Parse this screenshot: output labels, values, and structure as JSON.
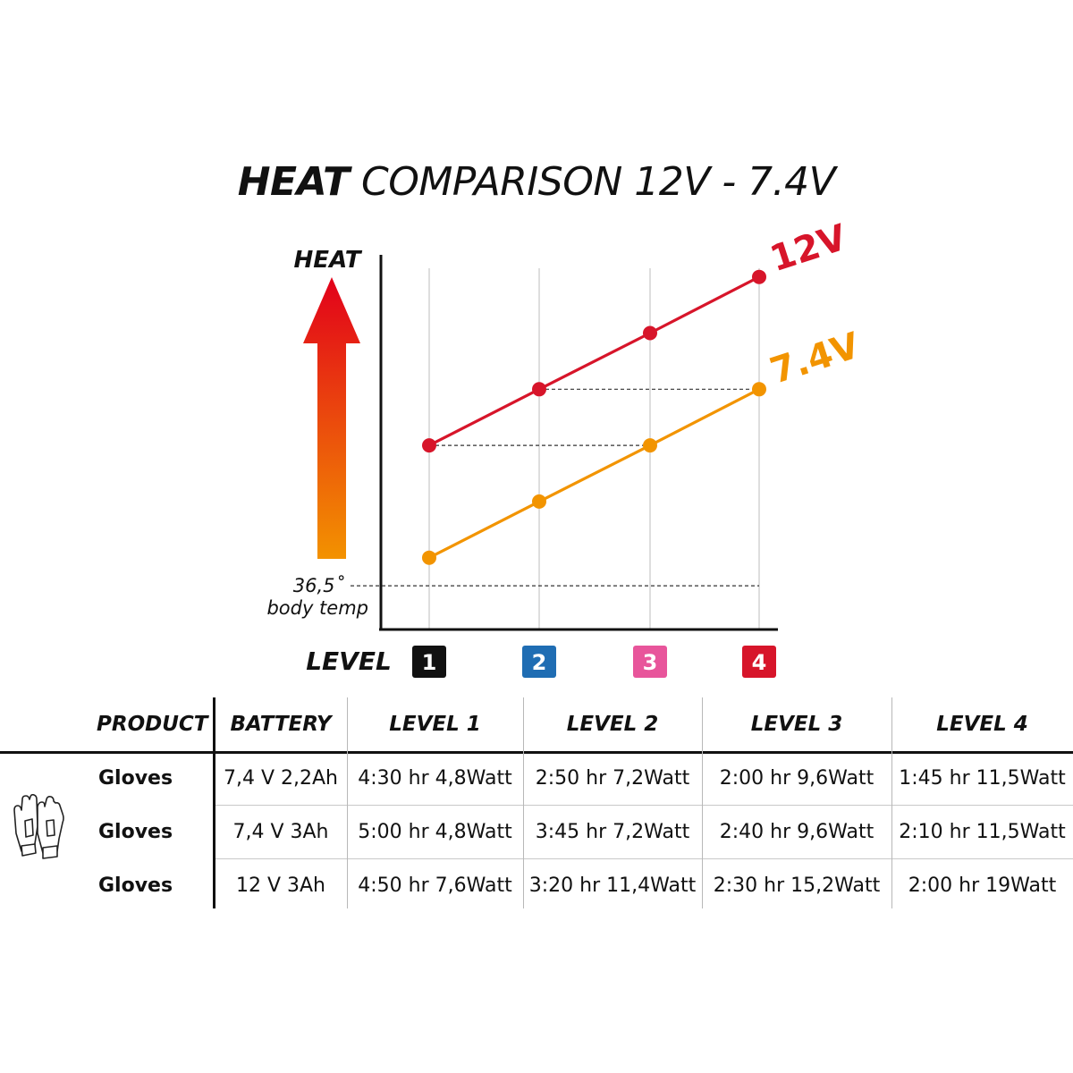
{
  "title": {
    "bold": "HEAT",
    "rest": " COMPARISON 12V - 7.4V"
  },
  "chart_data": {
    "type": "line",
    "categories": [
      "1",
      "2",
      "3",
      "4"
    ],
    "series": [
      {
        "name": "12V",
        "values": [
          3,
          4,
          5,
          6
        ],
        "color": "#d7152a"
      },
      {
        "name": "7.4V",
        "values": [
          1,
          2,
          3,
          4
        ],
        "color": "#f29400"
      }
    ],
    "ylabel": "HEAT",
    "xlabel": "LEVEL",
    "baseline_label_1": "36,5˚",
    "baseline_label_2": "body temp",
    "baseline_value": 0.5,
    "ylim": [
      0,
      7
    ],
    "level_colors": [
      "#111111",
      "#1f6db3",
      "#e8559b",
      "#d7152a"
    ],
    "arrow_colors": {
      "top": "#e2001a",
      "bottom": "#f39200"
    }
  },
  "table": {
    "headers": [
      "PRODUCT",
      "BATTERY",
      "LEVEL 1",
      "LEVEL 2",
      "LEVEL 3",
      "LEVEL 4"
    ],
    "rows": [
      [
        "Gloves",
        "7,4 V 2,2Ah",
        "4:30 hr 4,8Watt",
        "2:50 hr 7,2Watt",
        "2:00 hr 9,6Watt",
        "1:45 hr 11,5Watt"
      ],
      [
        "Gloves",
        "7,4 V 3Ah",
        "5:00 hr 4,8Watt",
        "3:45 hr 7,2Watt",
        "2:40 hr 9,6Watt",
        "2:10 hr 11,5Watt"
      ],
      [
        "Gloves",
        "12 V 3Ah",
        "4:50 hr 7,6Watt",
        "3:20 hr 11,4Watt",
        "2:30 hr 15,2Watt",
        "2:00 hr 19Watt"
      ]
    ],
    "product_icon": "glove-icon"
  }
}
